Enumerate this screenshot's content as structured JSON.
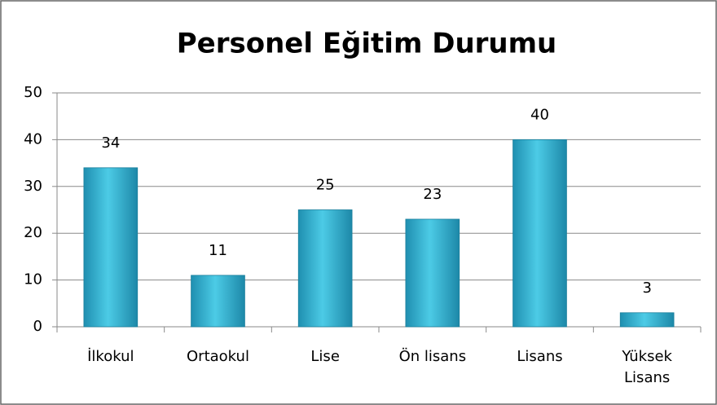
{
  "chart_data": {
    "type": "bar",
    "title": "Personel Eğitim Durumu",
    "categories": [
      "İlkokul",
      "Ortaokul",
      "Lise",
      "Ön lisans",
      "Lisans",
      "Yüksek Lisans"
    ],
    "values": [
      34,
      11,
      25,
      23,
      40,
      3
    ],
    "color": "#3bbcd9",
    "ylim": [
      0,
      50
    ],
    "yticks": [
      0,
      10,
      20,
      30,
      40,
      50
    ],
    "grid": true
  }
}
